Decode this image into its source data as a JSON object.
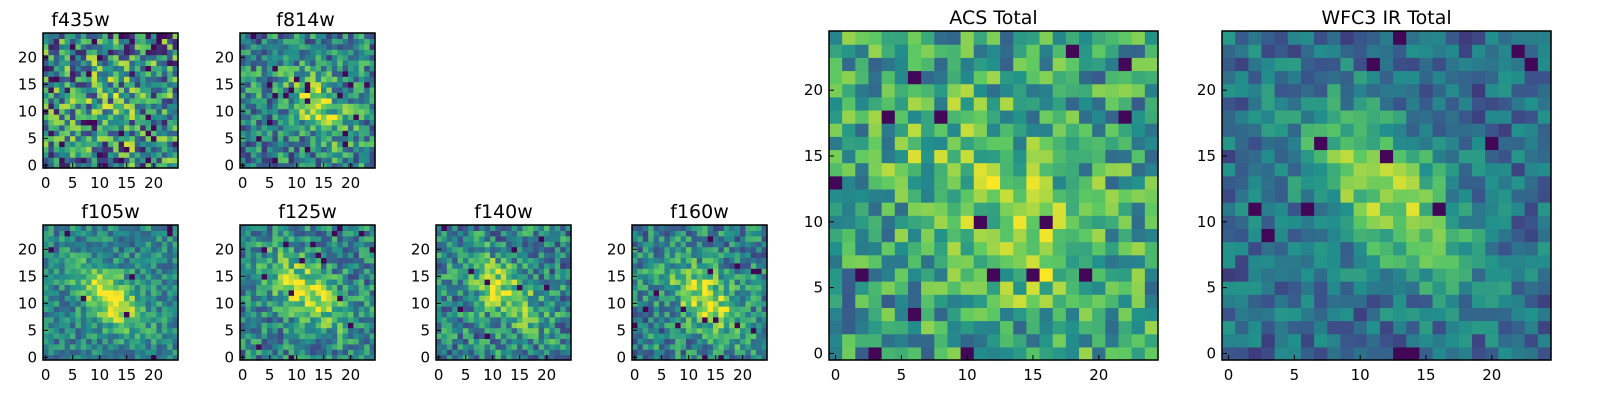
{
  "colors": {
    "colormap": "viridis",
    "colormap_stops": [
      "#440154",
      "#3b528b",
      "#21918c",
      "#5ec962",
      "#fde725"
    ],
    "frame": "#000000",
    "background": "#ffffff"
  },
  "chart_data": [
    {
      "type": "heatmap",
      "title": "f435w",
      "x_ticks": [
        "0",
        "5",
        "10",
        "15",
        "20"
      ],
      "y_ticks": [
        "0",
        "5",
        "10",
        "15",
        "20"
      ],
      "xlim": [
        -0.5,
        24.5
      ],
      "ylim": [
        -0.5,
        24.5
      ],
      "grid_size": 25,
      "peak": [
        14,
        11
      ],
      "spread": 5,
      "peak_strength": 0.15,
      "noise": 0.85,
      "dark_fraction": 0.04,
      "seed": 11
    },
    {
      "type": "heatmap",
      "title": "f814w",
      "x_ticks": [
        "0",
        "5",
        "10",
        "15",
        "20"
      ],
      "y_ticks": [
        "0",
        "5",
        "10",
        "15",
        "20"
      ],
      "xlim": [
        -0.5,
        24.5
      ],
      "ylim": [
        -0.5,
        24.5
      ],
      "grid_size": 25,
      "peak": [
        14,
        11
      ],
      "spread": 4,
      "peak_strength": 0.35,
      "noise": 0.6,
      "dark_fraction": 0.03,
      "seed": 23
    },
    {
      "type": "heatmap",
      "title": "f105w",
      "x_ticks": [
        "0",
        "5",
        "10",
        "15",
        "20"
      ],
      "y_ticks": [
        "0",
        "5",
        "10",
        "15",
        "20"
      ],
      "xlim": [
        -0.5,
        24.5
      ],
      "ylim": [
        -0.5,
        24.5
      ],
      "grid_size": 25,
      "peak": [
        12,
        11
      ],
      "spread": 3.5,
      "peak_strength": 0.55,
      "noise": 0.4,
      "dark_fraction": 0.01,
      "seed": 37
    },
    {
      "type": "heatmap",
      "title": "f125w",
      "x_ticks": [
        "0",
        "5",
        "10",
        "15",
        "20"
      ],
      "y_ticks": [
        "0",
        "5",
        "10",
        "15",
        "20"
      ],
      "xlim": [
        -0.5,
        24.5
      ],
      "ylim": [
        -0.5,
        24.5
      ],
      "grid_size": 25,
      "peak": [
        12,
        12
      ],
      "spread": 4,
      "peak_strength": 0.45,
      "noise": 0.5,
      "dark_fraction": 0.02,
      "seed": 41
    },
    {
      "type": "heatmap",
      "title": "f140w",
      "x_ticks": [
        "0",
        "5",
        "10",
        "15",
        "20"
      ],
      "y_ticks": [
        "0",
        "5",
        "10",
        "15",
        "20"
      ],
      "xlim": [
        -0.5,
        24.5
      ],
      "ylim": [
        -0.5,
        24.5
      ],
      "grid_size": 25,
      "peak": [
        12,
        12
      ],
      "spread": 4,
      "peak_strength": 0.4,
      "noise": 0.55,
      "dark_fraction": 0.02,
      "seed": 53
    },
    {
      "type": "heatmap",
      "title": "f160w",
      "x_ticks": [
        "0",
        "5",
        "10",
        "15",
        "20"
      ],
      "y_ticks": [
        "0",
        "5",
        "10",
        "15",
        "20"
      ],
      "xlim": [
        -0.5,
        24.5
      ],
      "ylim": [
        -0.5,
        24.5
      ],
      "grid_size": 25,
      "peak": [
        13,
        11
      ],
      "spread": 4,
      "peak_strength": 0.45,
      "noise": 0.5,
      "dark_fraction": 0.02,
      "seed": 67
    },
    {
      "type": "heatmap",
      "title": "ACS Total",
      "x_ticks": [
        "0",
        "5",
        "10",
        "15",
        "20"
      ],
      "y_ticks": [
        "0",
        "5",
        "10",
        "15",
        "20"
      ],
      "xlim": [
        -0.5,
        24.5
      ],
      "ylim": [
        -0.5,
        24.5
      ],
      "grid_size": 25,
      "peak": [
        13,
        11
      ],
      "spread": 5,
      "peak_strength": 0.25,
      "noise": 0.55,
      "base": 0.55,
      "dark_fraction": 0.03,
      "seed": 79
    },
    {
      "type": "heatmap",
      "title": "WFC3 IR Total",
      "x_ticks": [
        "0",
        "5",
        "10",
        "15",
        "20"
      ],
      "y_ticks": [
        "0",
        "5",
        "10",
        "15",
        "20"
      ],
      "xlim": [
        -0.5,
        24.5
      ],
      "ylim": [
        -0.5,
        24.5
      ],
      "grid_size": 25,
      "peak": [
        12,
        12
      ],
      "spread": 3.8,
      "peak_strength": 0.5,
      "noise": 0.35,
      "base": 0.35,
      "dark_fraction": 0.03,
      "seed": 97
    }
  ]
}
